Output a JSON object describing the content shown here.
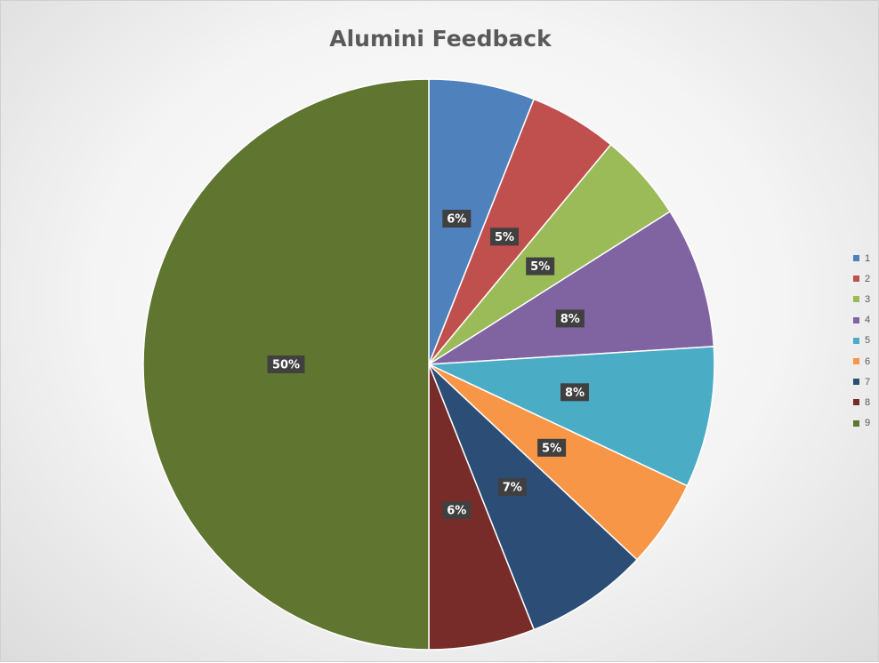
{
  "chart_data": {
    "type": "pie",
    "title": "Alumini Feedback",
    "slices": [
      {
        "label": "1",
        "value": 6,
        "display": "6%",
        "color": "#4f81bd"
      },
      {
        "label": "2",
        "value": 5,
        "display": "5%",
        "color": "#c0504d"
      },
      {
        "label": "3",
        "value": 5,
        "display": "5%",
        "color": "#9bbb59"
      },
      {
        "label": "4",
        "value": 8,
        "display": "8%",
        "color": "#8064a2"
      },
      {
        "label": "5",
        "value": 8,
        "display": "8%",
        "color": "#4bacc6"
      },
      {
        "label": "6",
        "value": 5,
        "display": "5%",
        "color": "#f79646"
      },
      {
        "label": "7",
        "value": 7,
        "display": "7%",
        "color": "#2c4d75"
      },
      {
        "label": "8",
        "value": 6,
        "display": "6%",
        "color": "#772c2a"
      },
      {
        "label": "9",
        "value": 50,
        "display": "50%",
        "color": "#5f7530"
      }
    ],
    "legend_position": "right",
    "data_label_style": "dark box with white text"
  }
}
